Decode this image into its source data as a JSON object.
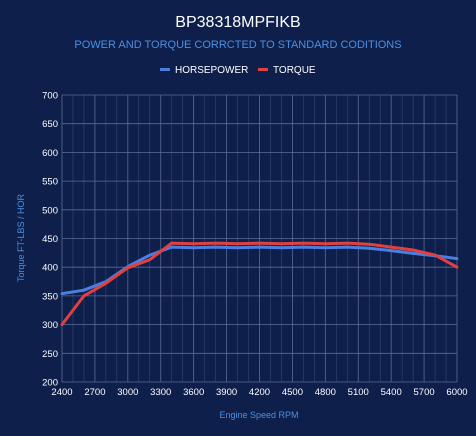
{
  "chart_data": {
    "type": "line",
    "title": "BP38318MPFIKB",
    "subtitle": "POWER AND TORQUE CORRCTED TO STANDARD CODITIONS",
    "xlabel": "Engine Speed RPM",
    "ylabel": "Torque FT-LBS / HOR",
    "xlim": [
      2400,
      6000
    ],
    "ylim": [
      200,
      700
    ],
    "x_ticks": [
      2400,
      2700,
      3000,
      3300,
      3600,
      3900,
      4200,
      4500,
      4800,
      5100,
      5400,
      5700,
      6000
    ],
    "y_ticks": [
      200,
      250,
      300,
      350,
      400,
      450,
      500,
      550,
      600,
      650,
      700
    ],
    "legend_position": "top-center",
    "grid": true,
    "series": [
      {
        "name": "HORSEPOWER",
        "color": "#4a7fe0",
        "x": [
          2400,
          2600,
          2800,
          3000,
          3200,
          3400,
          3600,
          3800,
          4000,
          4200,
          4400,
          4600,
          4800,
          5000,
          5200,
          5400,
          5600,
          5800,
          6000
        ],
        "y": [
          354,
          360,
          375,
          401,
          421,
          435,
          434,
          435,
          434,
          435,
          434,
          435,
          434,
          435,
          433,
          429,
          424,
          420,
          415
        ]
      },
      {
        "name": "TORQUE",
        "color": "#e04040",
        "x": [
          2400,
          2600,
          2800,
          3000,
          3200,
          3400,
          3600,
          3800,
          4000,
          4200,
          4400,
          4600,
          4800,
          5000,
          5200,
          5400,
          5600,
          5800,
          6000
        ],
        "y": [
          300,
          350,
          372,
          399,
          413,
          442,
          441,
          442,
          441,
          442,
          441,
          442,
          441,
          442,
          440,
          435,
          430,
          421,
          400
        ]
      }
    ]
  }
}
